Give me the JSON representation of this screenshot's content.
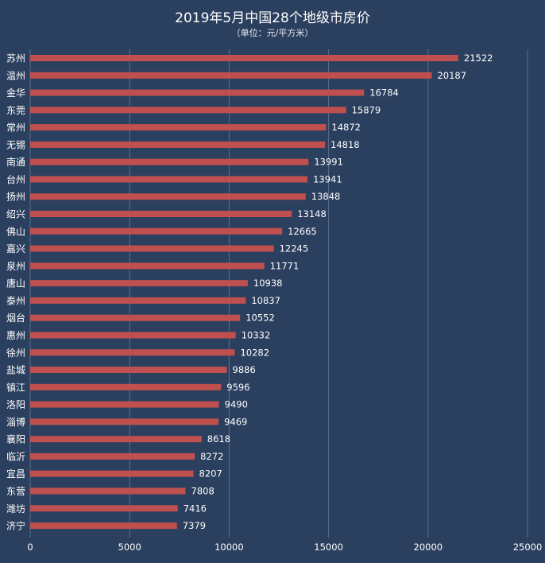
{
  "chart_data": {
    "type": "bar",
    "orientation": "horizontal",
    "title": "2019年5月中国28个地级市房价",
    "subtitle": "（单位：元/平方米）",
    "categories": [
      "苏州",
      "温州",
      "金华",
      "东莞",
      "常州",
      "无锡",
      "南通",
      "台州",
      "扬州",
      "绍兴",
      "佛山",
      "嘉兴",
      "泉州",
      "唐山",
      "泰州",
      "烟台",
      "惠州",
      "徐州",
      "盐城",
      "镇江",
      "洛阳",
      "淄博",
      "襄阳",
      "临沂",
      "宜昌",
      "东营",
      "潍坊",
      "济宁"
    ],
    "values": [
      21522,
      20187,
      16784,
      15879,
      14872,
      14818,
      13991,
      13941,
      13848,
      13148,
      12665,
      12245,
      11771,
      10938,
      10837,
      10552,
      10332,
      10282,
      9886,
      9596,
      9490,
      9469,
      8618,
      8272,
      8207,
      7808,
      7416,
      7379
    ],
    "xlim": [
      0,
      25000
    ],
    "xticks": [
      0,
      5000,
      10000,
      15000,
      20000,
      25000
    ],
    "grid": true,
    "legend": "none",
    "colors": {
      "bar": "#c0504f",
      "background": "#2b3f5e",
      "grid": "#5a6f90"
    }
  }
}
